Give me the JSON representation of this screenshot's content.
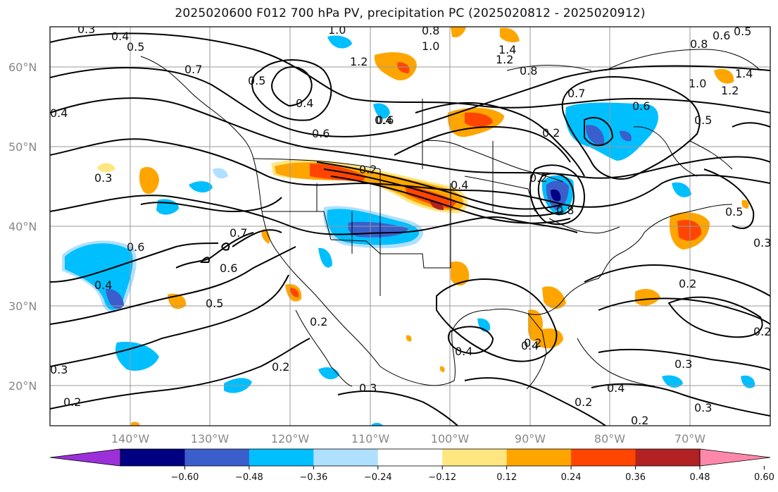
{
  "title": "2025020600 F012 700 hPa PV, precipitation PC (2025020812 - 2025020912)",
  "map": {
    "projection": "equirectangular",
    "lon_range": [
      -150,
      -60
    ],
    "lat_range": [
      15,
      65
    ],
    "lat_ticks": [
      "20°N",
      "30°N",
      "40°N",
      "50°N",
      "60°N"
    ],
    "lon_ticks": [
      "140°W",
      "130°W",
      "120°W",
      "110°W",
      "100°W",
      "90°W",
      "80°W",
      "70°W"
    ]
  },
  "contour_labels": [
    "0.3",
    "0.4",
    "0.5",
    "0.7",
    "0.5",
    "0.4",
    "1.0",
    "1.2",
    "0.8",
    "1.0",
    "1.2",
    "1.4",
    "0.8",
    "0.6",
    "0.5",
    "0.8",
    "1.0",
    "1.2",
    "1.4",
    "0.7",
    "0.6",
    "0.5",
    "0.4",
    "0.6",
    "0.4",
    "0.3",
    "0.6",
    "0.2",
    "0.4",
    "0.2",
    "0.2",
    "0.8",
    "0.5",
    "0.7",
    "0.6",
    "0.5",
    "0.6",
    "0.4",
    "0.2",
    "0.2",
    "0.3",
    "0.2",
    "0.3",
    "0.2",
    "0.4",
    "0.2",
    "0.3",
    "0.4",
    "0.2",
    "0.3",
    "0.2",
    "0.4",
    "0.2",
    "0.3"
  ],
  "colorbar": {
    "colors": [
      "#9b30d9",
      "#000080",
      "#3a5fcd",
      "#00bfff",
      "#b0e0ff",
      "#ffffff",
      "#ffe680",
      "#ffa500",
      "#ff4500",
      "#b22222",
      "#ff88aa"
    ],
    "tick_labels": [
      "−0.60",
      "−0.48",
      "−0.36",
      "−0.24",
      "−0.12",
      "0.12",
      "0.24",
      "0.36",
      "0.48",
      "0.60"
    ]
  }
}
